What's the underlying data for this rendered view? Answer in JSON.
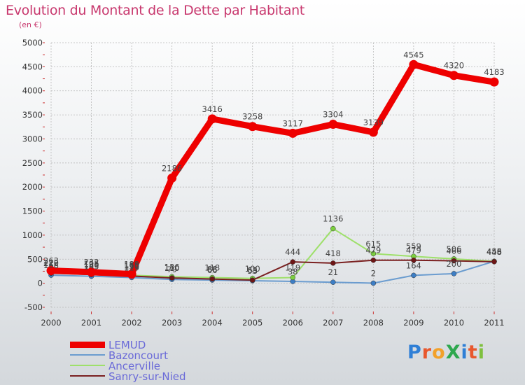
{
  "header": {
    "title": "Evolution du Montant de la Dette par Habitant",
    "subtitle": "(en €)"
  },
  "logo": {
    "text": "ProXiti"
  },
  "colors": {
    "title": "#c8386e",
    "axis_text": "#333333",
    "grid": "#b8b8b8",
    "legend_text": "#6a6ad8"
  },
  "chart_data": {
    "type": "line",
    "title": "Evolution du Montant de la Dette par Habitant",
    "subtitle": "(en €)",
    "xlabel": "",
    "ylabel": "",
    "categories": [
      "2000",
      "2001",
      "2002",
      "2003",
      "2004",
      "2005",
      "2006",
      "2007",
      "2008",
      "2009",
      "2010",
      "2011"
    ],
    "ylim": [
      -500,
      5000
    ],
    "yticks": [
      -500,
      0,
      500,
      1000,
      1500,
      2000,
      2500,
      3000,
      3500,
      4000,
      4500,
      5000
    ],
    "grid": true,
    "legend_position": "bottom-left",
    "series": [
      {
        "name": "LEMUD",
        "color": "#ee0000",
        "marker_color": "#ee0000",
        "width": 9,
        "values": [
          263,
          232,
          189,
          2186,
          3416,
          3258,
          3117,
          3304,
          3139,
          4545,
          4320,
          4183
        ],
        "labels": [
          "263",
          "232",
          "189",
          "2186",
          "3416",
          "3258",
          "3117",
          "3304",
          "3139",
          "4545",
          "4320",
          "4183"
        ]
      },
      {
        "name": "Bazoncourt",
        "color": "#6b9ccf",
        "marker_color": "#3d7ec5",
        "width": 2,
        "values": [
          168,
          145,
          119,
          79,
          66,
          53,
          38,
          21,
          2,
          164,
          200,
          456
        ],
        "labels": [
          "168",
          "145",
          "119",
          "79",
          "66",
          "53",
          "38",
          "21",
          "2",
          "164",
          "200",
          "456"
        ]
      },
      {
        "name": "Ancerville",
        "color": "#9ee06a",
        "marker_color": "#7ccf3f",
        "width": 2,
        "values": [
          222,
          195,
          166,
          136,
          118,
          100,
          119,
          1136,
          615,
          559,
          506,
          455
        ],
        "labels": [
          "222",
          "195",
          "166",
          "136",
          "118",
          "100",
          "119",
          "1136",
          "615",
          "559",
          "506",
          "455"
        ]
      },
      {
        "name": "Sanry-sur-Nied",
        "color": "#7a2020",
        "marker_color": "#6e1616",
        "width": 2,
        "values": [
          210,
          180,
          150,
          110,
          88,
          65,
          444,
          418,
          479,
          479,
          466,
          448
        ],
        "labels": [
          "210",
          "180",
          "150",
          "110",
          "88",
          "65",
          "444",
          "418",
          "479",
          "479",
          "466",
          "448"
        ]
      }
    ]
  }
}
